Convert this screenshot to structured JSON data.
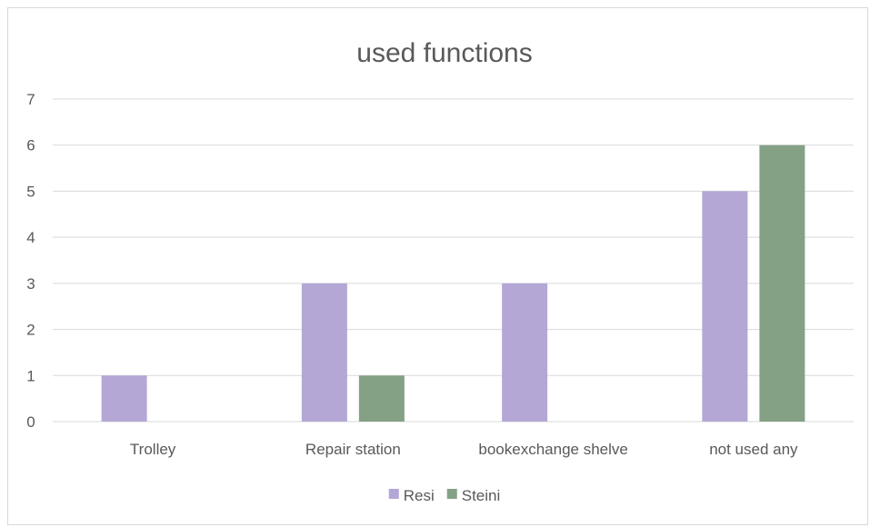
{
  "chart_data": {
    "type": "bar",
    "title": "used functions",
    "categories": [
      "Trolley",
      "Repair station",
      "bookexchange shelve",
      "not used any"
    ],
    "series": [
      {
        "name": "Resi",
        "values": [
          1,
          3,
          3,
          5
        ],
        "color": "#b4a7d6"
      },
      {
        "name": "Steini",
        "values": [
          0,
          1,
          0,
          6
        ],
        "color": "#84a185"
      }
    ],
    "ylim": [
      0,
      7
    ],
    "yticks": [
      0,
      1,
      2,
      3,
      4,
      5,
      6,
      7
    ],
    "grid": true,
    "legend_position": "bottom"
  }
}
